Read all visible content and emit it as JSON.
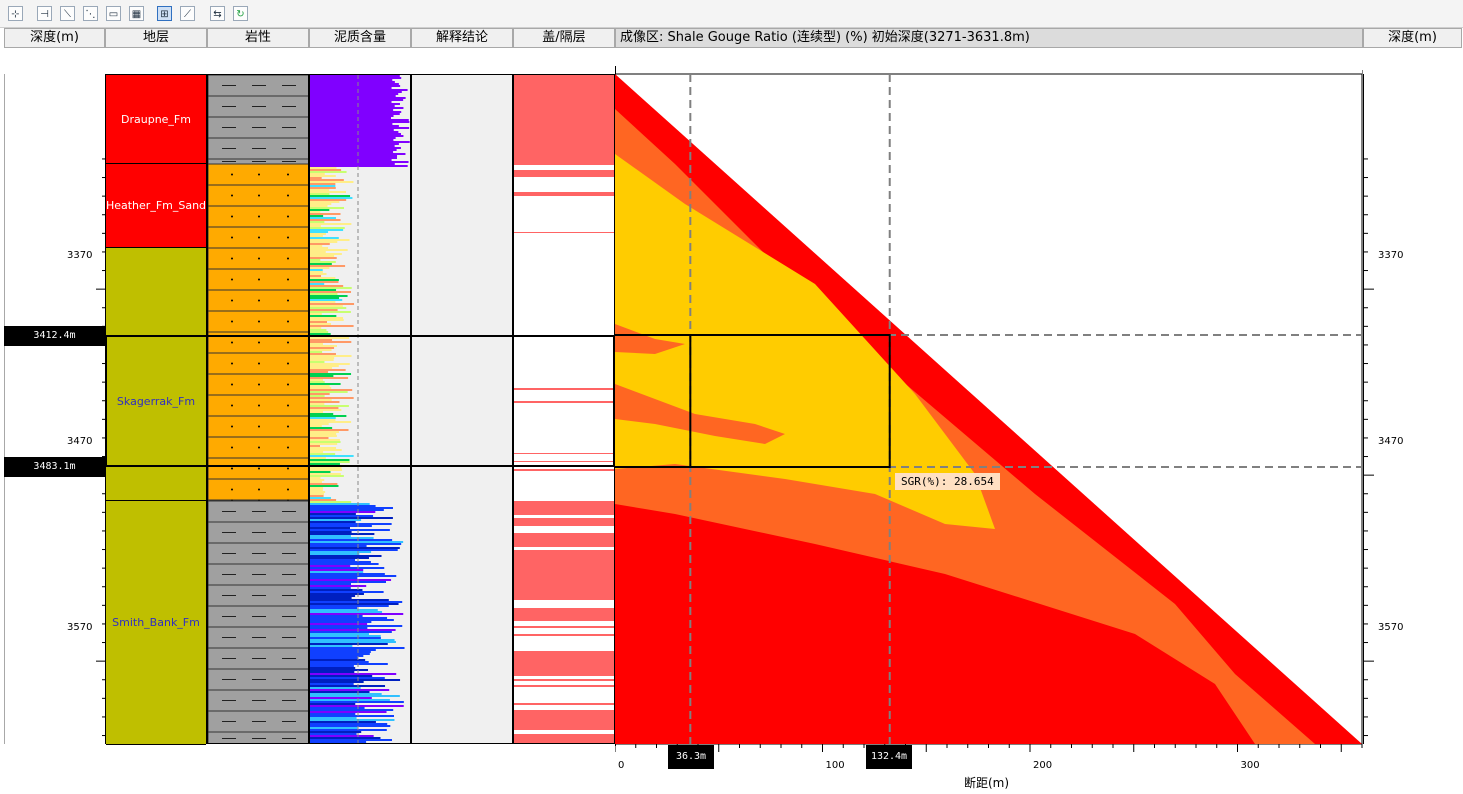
{
  "toolbar": {
    "buttons": [
      {
        "name": "select-tool-button",
        "glyph": "⊹",
        "active": false
      },
      {
        "name": "insert-tool-button",
        "glyph": "⊣",
        "active": false
      },
      {
        "name": "line-tool-button",
        "glyph": "⟍",
        "active": false
      },
      {
        "name": "fault-tool-button",
        "glyph": "⋱",
        "active": false
      },
      {
        "name": "calendar-tool-button",
        "glyph": "▭",
        "active": false
      },
      {
        "name": "table-tool-button",
        "glyph": "▦",
        "active": false
      },
      {
        "name": "grid-tool-button",
        "glyph": "⊞",
        "active": true
      },
      {
        "name": "diagonal-tool-button",
        "glyph": "⟋",
        "active": false
      },
      {
        "name": "swap-tool-button",
        "glyph": "⇆",
        "active": false
      },
      {
        "name": "refresh-tool-button",
        "glyph": "↻",
        "active": false
      }
    ]
  },
  "headers": {
    "depth_left": "深度(m)",
    "strata": "地层",
    "lithology": "岩性",
    "shale": "泥质含量",
    "interpretation": "解释结论",
    "seal": "盖/隔层",
    "image": "成像区: Shale Gouge Ratio (连续型) (%)  初始深度(3271-3631.8m)",
    "depth_right": "深度(m)"
  },
  "depth_ticks": [
    "3370",
    "3470",
    "3570"
  ],
  "formations": [
    {
      "name": "Draupne_Fm",
      "color": "#ff0000",
      "text_color": "#ffffff"
    },
    {
      "name": "Heather_Fm_Sand",
      "color": "#ff0000",
      "text_color": "#ffffff"
    },
    {
      "name": "",
      "color": "#bfbf00",
      "text_color": "#3030c0"
    },
    {
      "name": "Skagerrak_Fm",
      "color": "#bfbf00",
      "text_color": "#3030c0"
    },
    {
      "name": "",
      "color": "#bfbf00",
      "text_color": "#3030c0"
    },
    {
      "name": "Smith_Bank_Fm",
      "color": "#bfbf00",
      "text_color": "#3030c0"
    }
  ],
  "selection": {
    "top_depth_label": "3412.4m",
    "bottom_depth_label": "3483.1m"
  },
  "cursors": {
    "x1_label": "36.3m",
    "x2_label": "132.4m"
  },
  "readout": "SGR(%): 28.654",
  "colors": {
    "high": "#ff0000",
    "mid": "#ff6622",
    "low": "#ffcc00",
    "shale_purple": "#8000ff",
    "seal_pink": "#ff6464"
  },
  "chart_data": {
    "type": "heatmap",
    "title": "成像区: Shale Gouge Ratio (连续型) (%)  初始深度(3271-3631.8m)",
    "xlabel": "断距(m)",
    "ylabel": "深度(m)",
    "x_ticks": [
      "0",
      "100",
      "200",
      "300"
    ],
    "y_ticks": [
      "3370",
      "3470",
      "3570"
    ],
    "xlim": [
      0,
      360
    ],
    "ylim": [
      3271,
      3631.8
    ],
    "selection": {
      "x": [
        36.3,
        132.4
      ],
      "depth": [
        3412.4,
        3483.1
      ]
    },
    "readout": {
      "label": "SGR(%)",
      "value": 28.654
    }
  },
  "x_axis_label": "断距(m)"
}
